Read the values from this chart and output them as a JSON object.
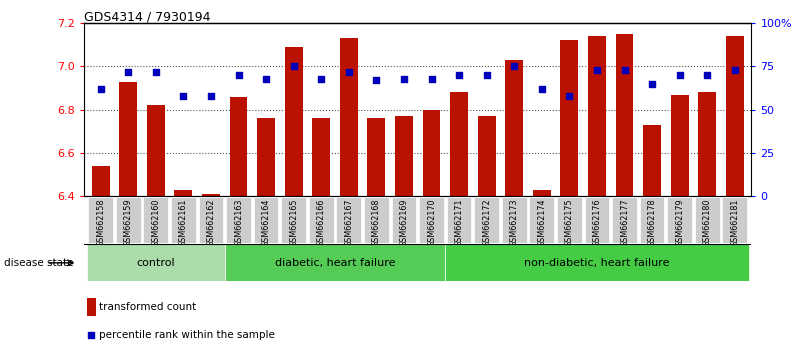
{
  "title": "GDS4314 / 7930194",
  "samples": [
    "GSM662158",
    "GSM662159",
    "GSM662160",
    "GSM662161",
    "GSM662162",
    "GSM662163",
    "GSM662164",
    "GSM662165",
    "GSM662166",
    "GSM662167",
    "GSM662168",
    "GSM662169",
    "GSM662170",
    "GSM662171",
    "GSM662172",
    "GSM662173",
    "GSM662174",
    "GSM662175",
    "GSM662176",
    "GSM662177",
    "GSM662178",
    "GSM662179",
    "GSM662180",
    "GSM662181"
  ],
  "transformed_counts": [
    6.54,
    6.93,
    6.82,
    6.43,
    6.41,
    6.86,
    6.76,
    7.09,
    6.76,
    7.13,
    6.76,
    6.77,
    6.8,
    6.88,
    6.77,
    7.03,
    6.43,
    7.12,
    7.14,
    7.15,
    6.73,
    6.87,
    6.88,
    7.14
  ],
  "percentile_ranks": [
    62,
    72,
    72,
    58,
    58,
    70,
    68,
    75,
    68,
    72,
    67,
    68,
    68,
    70,
    70,
    75,
    62,
    58,
    73,
    73,
    65,
    70,
    70,
    73
  ],
  "ylim_left": [
    6.4,
    7.2
  ],
  "ylim_right": [
    0,
    100
  ],
  "yticks_left": [
    6.4,
    6.6,
    6.8,
    7.0,
    7.2
  ],
  "yticks_right": [
    0,
    25,
    50,
    75,
    100
  ],
  "ytick_labels_right": [
    "0",
    "25",
    "50",
    "75",
    "100%"
  ],
  "bar_color": "#bb1100",
  "scatter_color": "#0000bb",
  "groups": [
    {
      "label": "control",
      "start": 0,
      "end": 4,
      "color": "#aaddaa"
    },
    {
      "label": "diabetic, heart failure",
      "start": 5,
      "end": 12,
      "color": "#55cc55"
    },
    {
      "label": "non-diabetic, heart failure",
      "start": 13,
      "end": 23,
      "color": "#44cc44"
    }
  ],
  "legend_bar_label": "transformed count",
  "legend_scatter_label": "percentile rank within the sample",
  "disease_state_label": "disease state",
  "background_color": "#ffffff",
  "grid_color": "#555555",
  "tick_box_color": "#cccccc",
  "spine_color": "#000000"
}
